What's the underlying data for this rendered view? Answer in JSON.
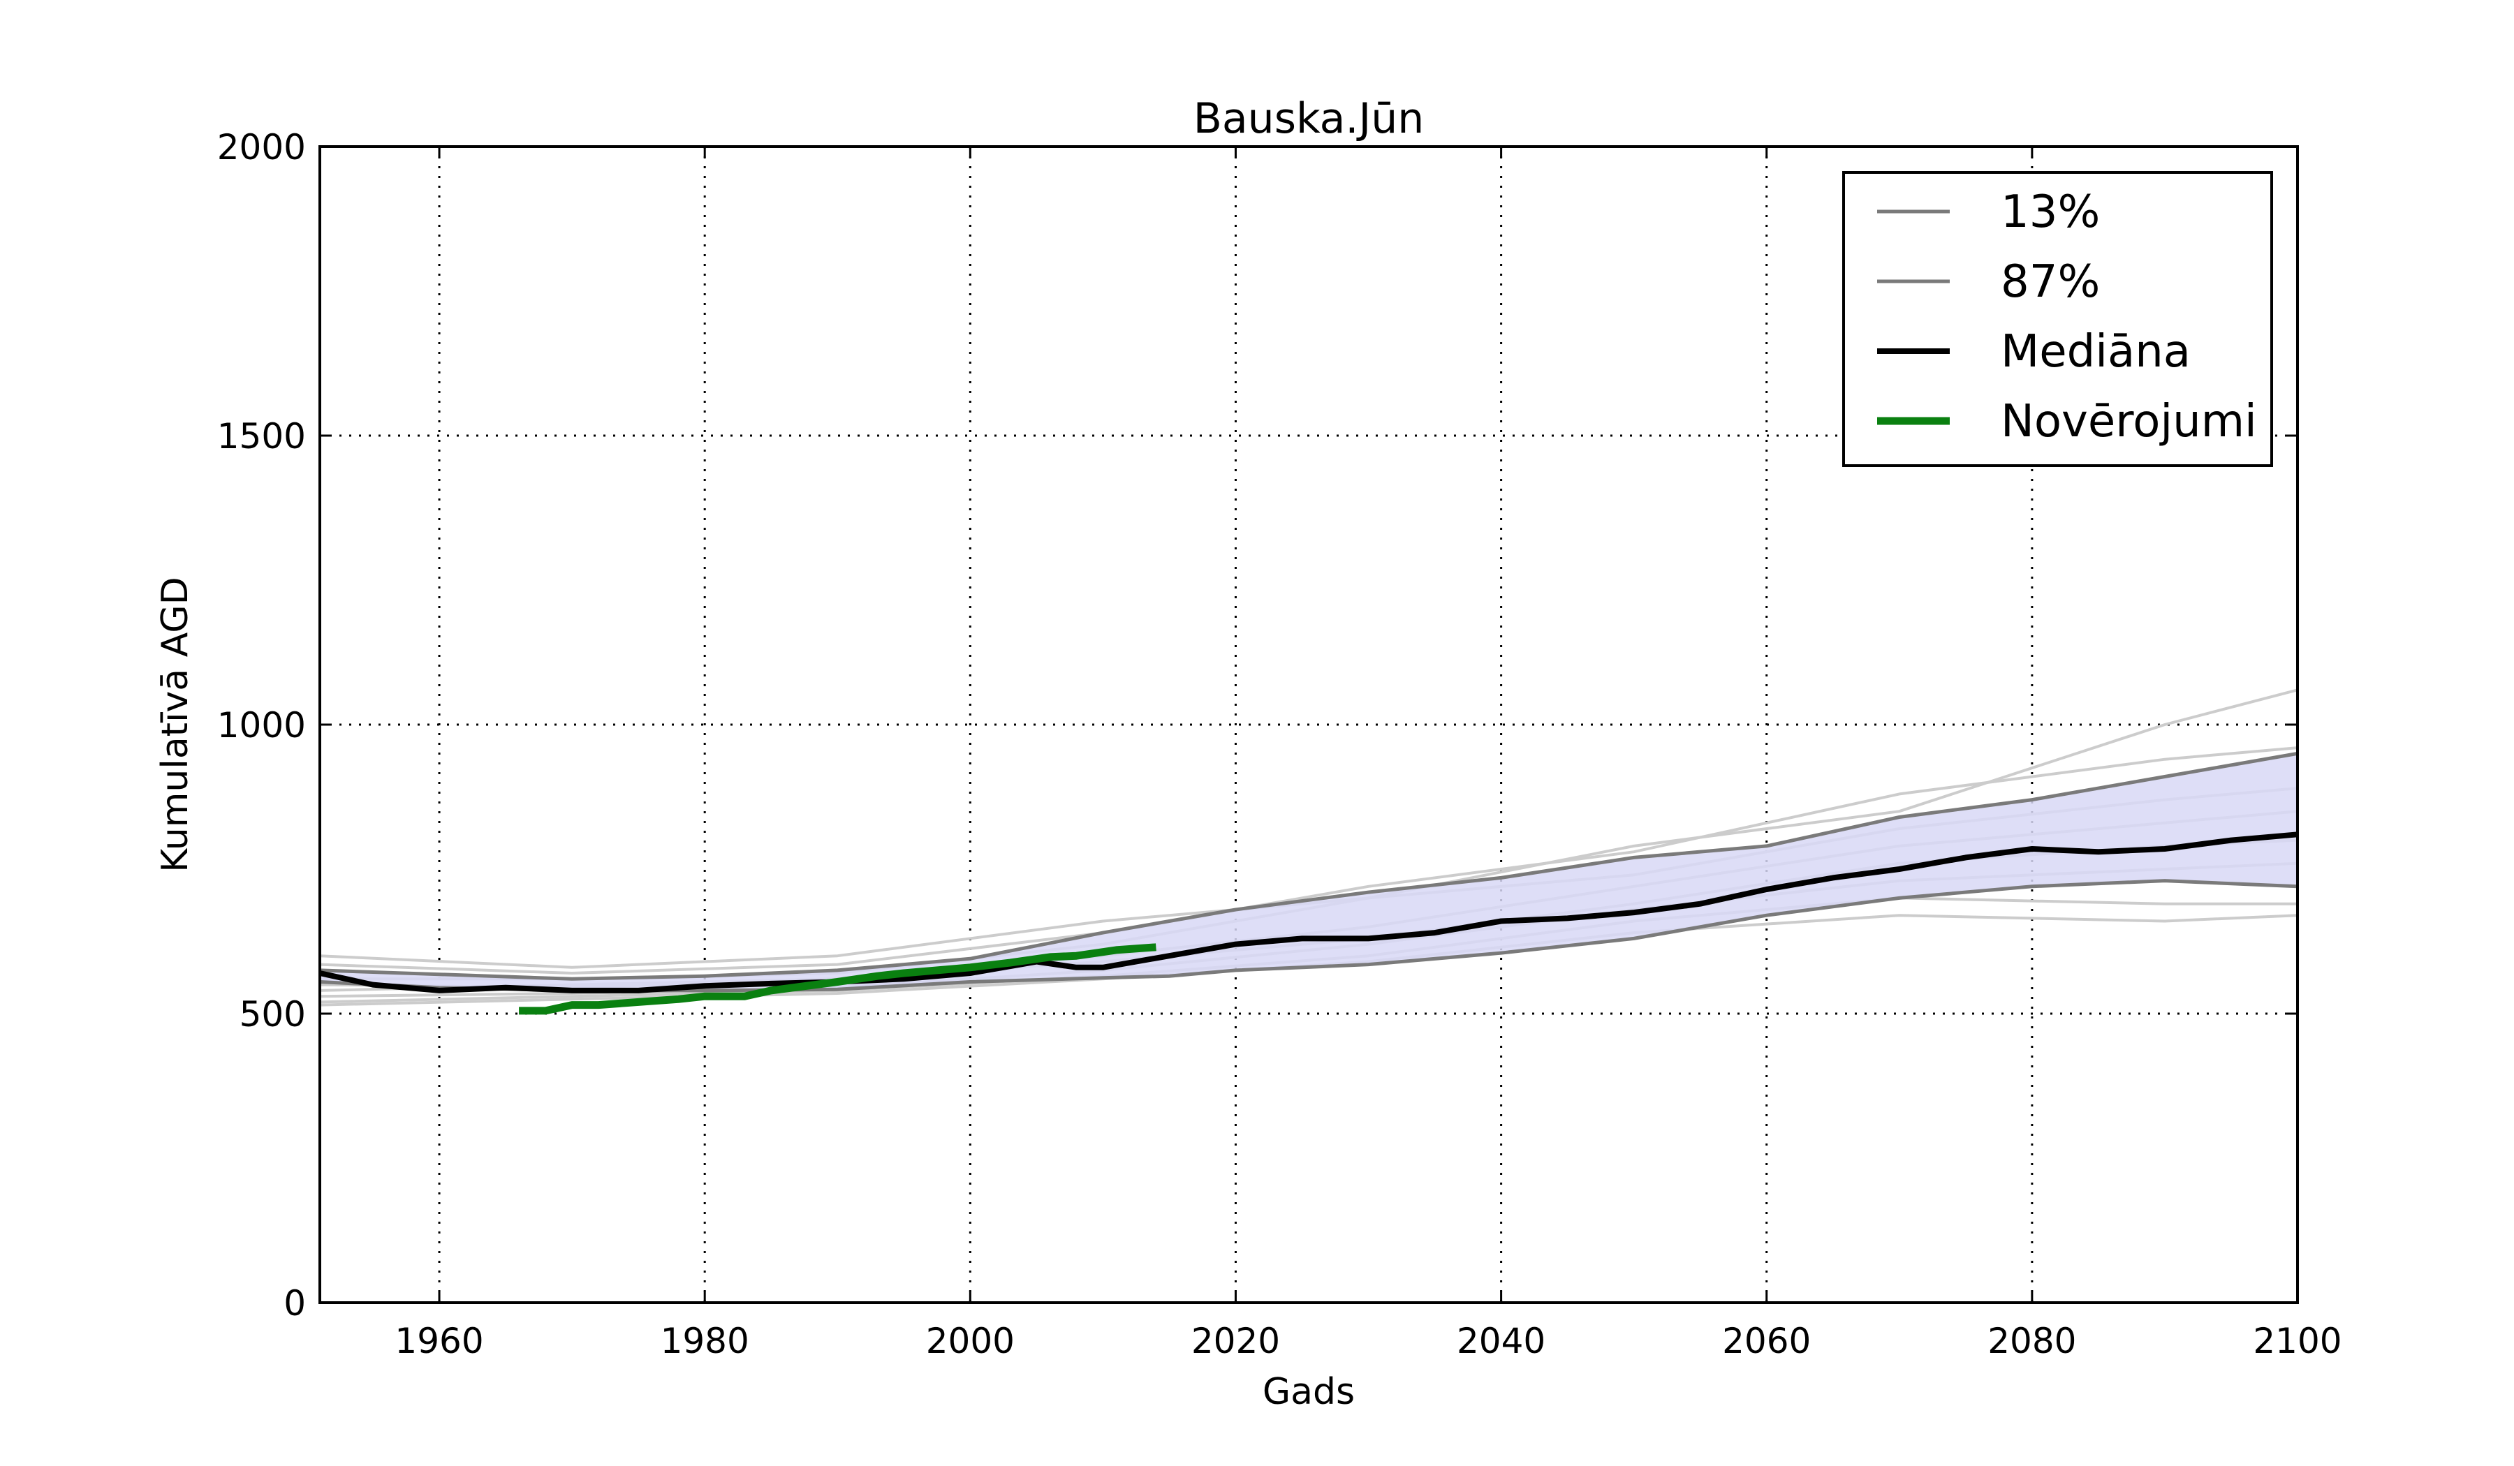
{
  "chart_data": {
    "type": "line",
    "title": "Bauska.Jūn",
    "xlabel": "Gads",
    "ylabel": "Kumulatīvā AGD",
    "xlim": [
      1951,
      2100
    ],
    "ylim": [
      0,
      2000
    ],
    "xticks": [
      1960,
      1980,
      2000,
      2020,
      2040,
      2060,
      2080,
      2100
    ],
    "xtick_labels": [
      "1960",
      "1980",
      "2000",
      "2020",
      "2040",
      "2060",
      "2080",
      "2100"
    ],
    "yticks": [
      0,
      500,
      1000,
      1500,
      2000
    ],
    "ytick_labels": [
      "0",
      "500",
      "1000",
      "1500",
      "2000"
    ],
    "grid": true,
    "legend_position": "top-right",
    "colors": {
      "percentile": "#7a7a7a",
      "median": "#000000",
      "observations": "#0a8010",
      "band": "#d8d8f6",
      "ensemble": "#cccccc"
    },
    "legend": [
      {
        "label": "13%",
        "series": "p13"
      },
      {
        "label": "87%",
        "series": "p87"
      },
      {
        "label": "Mediāna",
        "series": "median"
      },
      {
        "label": "Novērojumi",
        "series": "obs"
      }
    ],
    "series": [
      {
        "name": "13%",
        "id": "p13",
        "x": [
          1951,
          1960,
          1970,
          1980,
          1990,
          2000,
          2010,
          2015,
          2020,
          2030,
          2040,
          2050,
          2060,
          2070,
          2080,
          2090,
          2100
        ],
        "y": [
          555,
          545,
          540,
          540,
          542,
          555,
          562,
          565,
          575,
          585,
          605,
          630,
          670,
          700,
          720,
          730,
          720
        ]
      },
      {
        "name": "87%",
        "id": "p87",
        "x": [
          1951,
          1960,
          1970,
          1980,
          1990,
          2000,
          2010,
          2015,
          2020,
          2030,
          2040,
          2050,
          2060,
          2070,
          2080,
          2090,
          2100
        ],
        "y": [
          575,
          568,
          560,
          565,
          575,
          595,
          640,
          660,
          680,
          710,
          735,
          770,
          790,
          840,
          870,
          910,
          950
        ]
      },
      {
        "name": "Mediāna",
        "id": "median",
        "x": [
          1951,
          1955,
          1960,
          1965,
          1970,
          1975,
          1980,
          1985,
          1990,
          1995,
          2000,
          2005,
          2008,
          2010,
          2015,
          2020,
          2025,
          2030,
          2035,
          2040,
          2045,
          2050,
          2055,
          2060,
          2065,
          2070,
          2075,
          2080,
          2085,
          2090,
          2095,
          2100
        ],
        "y": [
          570,
          550,
          540,
          545,
          540,
          540,
          548,
          552,
          555,
          560,
          570,
          590,
          580,
          580,
          600,
          620,
          630,
          630,
          640,
          660,
          665,
          675,
          690,
          715,
          735,
          750,
          770,
          785,
          780,
          785,
          800,
          810
        ]
      },
      {
        "name": "Novērojumi",
        "id": "obs",
        "x": [
          1966,
          1968,
          1970,
          1972,
          1975,
          1978,
          1980,
          1983,
          1985,
          1990,
          1993,
          1995,
          2000,
          2003,
          2006,
          2008,
          2011,
          2014
        ],
        "y": [
          505,
          505,
          515,
          515,
          520,
          525,
          530,
          530,
          540,
          555,
          565,
          570,
          580,
          588,
          598,
          600,
          610,
          615
        ]
      }
    ],
    "ensemble": [
      {
        "x": [
          1951,
          1970,
          1990,
          2010,
          2030,
          2050,
          2070,
          2090,
          2100
        ],
        "y": [
          600,
          580,
          600,
          660,
          700,
          790,
          850,
          1000,
          1060
        ]
      },
      {
        "x": [
          1951,
          1970,
          1990,
          2010,
          2030,
          2050,
          2070,
          2090,
          2100
        ],
        "y": [
          585,
          570,
          585,
          640,
          720,
          780,
          880,
          940,
          960
        ]
      },
      {
        "x": [
          1951,
          1970,
          1990,
          2010,
          2030,
          2050,
          2070,
          2090,
          2100
        ],
        "y": [
          560,
          560,
          570,
          620,
          700,
          740,
          820,
          870,
          890
        ]
      },
      {
        "x": [
          1951,
          1970,
          1990,
          2010,
          2030,
          2050,
          2070,
          2090,
          2100
        ],
        "y": [
          550,
          545,
          560,
          600,
          650,
          720,
          790,
          830,
          850
        ]
      },
      {
        "x": [
          1951,
          1970,
          1990,
          2010,
          2030,
          2050,
          2070,
          2090,
          2100
        ],
        "y": [
          540,
          550,
          560,
          590,
          630,
          690,
          760,
          790,
          800
        ]
      },
      {
        "x": [
          1951,
          1970,
          1990,
          2010,
          2030,
          2050,
          2070,
          2090,
          2100
        ],
        "y": [
          530,
          535,
          545,
          575,
          620,
          680,
          730,
          750,
          760
        ]
      },
      {
        "x": [
          1951,
          1970,
          1990,
          2010,
          2030,
          2050,
          2070,
          2090,
          2100
        ],
        "y": [
          520,
          530,
          540,
          565,
          600,
          660,
          700,
          690,
          690
        ]
      },
      {
        "x": [
          1951,
          1970,
          1990,
          2010,
          2030,
          2050,
          2070,
          2090,
          2100
        ],
        "y": [
          515,
          525,
          535,
          560,
          590,
          640,
          670,
          660,
          670
        ]
      }
    ]
  }
}
